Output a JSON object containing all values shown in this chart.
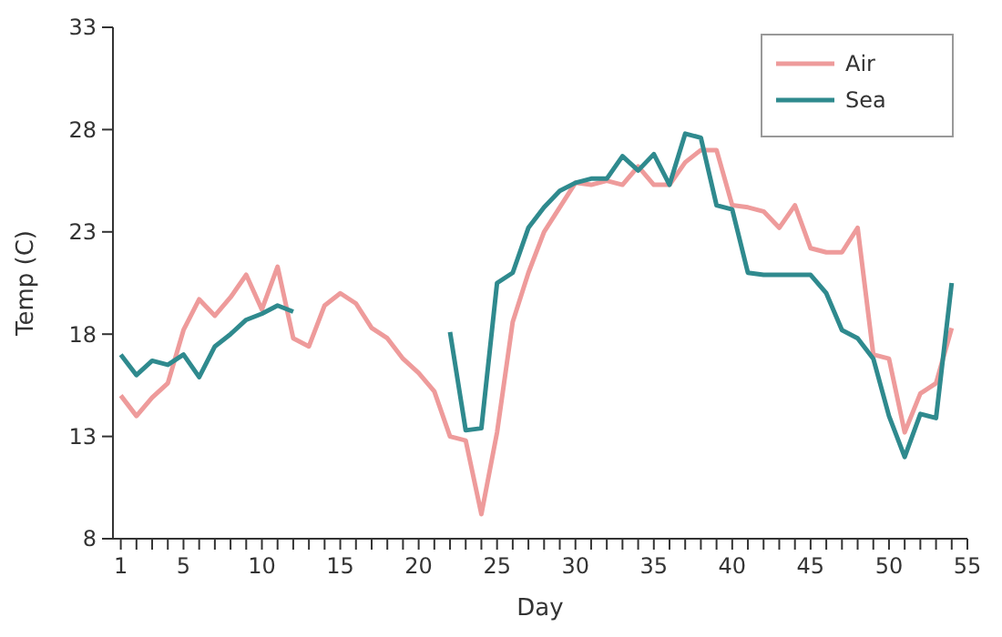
{
  "chart_data": {
    "type": "line",
    "xlabel": "Day",
    "ylabel": "Temp (C)",
    "x": [
      1,
      2,
      3,
      4,
      5,
      6,
      7,
      8,
      9,
      10,
      11,
      12,
      13,
      14,
      15,
      16,
      17,
      18,
      19,
      20,
      21,
      22,
      23,
      24,
      25,
      26,
      27,
      28,
      29,
      30,
      31,
      32,
      33,
      34,
      35,
      36,
      37,
      38,
      39,
      40,
      41,
      42,
      43,
      44,
      45,
      46,
      47,
      48,
      49,
      50,
      51,
      52,
      53,
      54
    ],
    "series": [
      {
        "name": "Air",
        "color": "#ee9b9b",
        "values": [
          15.0,
          14.0,
          14.9,
          15.6,
          18.2,
          19.7,
          18.9,
          19.8,
          20.9,
          19.2,
          21.3,
          17.8,
          17.4,
          19.4,
          20.0,
          19.5,
          18.3,
          17.8,
          16.8,
          16.1,
          15.2,
          13.0,
          12.8,
          9.2,
          13.2,
          18.6,
          21.0,
          23.0,
          24.2,
          25.4,
          25.3,
          25.5,
          25.3,
          26.2,
          25.3,
          25.3,
          26.4,
          27.0,
          27.0,
          24.3,
          24.2,
          24.0,
          23.2,
          24.3,
          22.2,
          22.0,
          22.0,
          23.2,
          17.0,
          16.8,
          13.2,
          15.1,
          15.6,
          18.3
        ]
      },
      {
        "name": "Sea",
        "color": "#2f8a8e",
        "values": [
          17.0,
          16.0,
          16.7,
          16.5,
          17.0,
          15.9,
          17.4,
          18.0,
          18.7,
          19.0,
          19.4,
          19.1,
          null,
          null,
          null,
          null,
          null,
          null,
          null,
          null,
          null,
          18.1,
          13.3,
          13.4,
          20.5,
          21.0,
          23.2,
          24.2,
          25.0,
          25.4,
          25.6,
          25.6,
          26.7,
          26.0,
          26.8,
          25.3,
          27.8,
          27.6,
          24.3,
          24.1,
          21.0,
          20.9,
          20.9,
          20.9,
          20.9,
          20.0,
          18.2,
          17.8,
          16.8,
          14.0,
          12.0,
          14.1,
          13.9,
          20.5
        ]
      }
    ],
    "xlim": [
      0.5,
      55
    ],
    "xticks": [
      1,
      {
        "value": 2,
        "label": null
      },
      {
        "value": 3,
        "label": null
      },
      {
        "value": 4,
        "label": null
      },
      5,
      {
        "value": 6,
        "label": null
      },
      {
        "value": 7,
        "label": null
      },
      {
        "value": 8,
        "label": null
      },
      {
        "value": 9,
        "label": null
      },
      10,
      {
        "value": 11,
        "label": null
      },
      {
        "value": 12,
        "label": null
      },
      {
        "value": 13,
        "label": null
      },
      {
        "value": 14,
        "label": null
      },
      15,
      {
        "value": 16,
        "label": null
      },
      {
        "value": 17,
        "label": null
      },
      {
        "value": 18,
        "label": null
      },
      {
        "value": 19,
        "label": null
      },
      20,
      {
        "value": 21,
        "label": null
      },
      {
        "value": 22,
        "label": null
      },
      {
        "value": 23,
        "label": null
      },
      {
        "value": 24,
        "label": null
      },
      25,
      {
        "value": 26,
        "label": null
      },
      {
        "value": 27,
        "label": null
      },
      {
        "value": 28,
        "label": null
      },
      {
        "value": 29,
        "label": null
      },
      30,
      {
        "value": 31,
        "label": null
      },
      {
        "value": 32,
        "label": null
      },
      {
        "value": 33,
        "label": null
      },
      {
        "value": 34,
        "label": null
      },
      35,
      {
        "value": 36,
        "label": null
      },
      {
        "value": 37,
        "label": null
      },
      {
        "value": 38,
        "label": null
      },
      {
        "value": 39,
        "label": null
      },
      40,
      {
        "value": 41,
        "label": null
      },
      {
        "value": 42,
        "label": null
      },
      {
        "value": 43,
        "label": null
      },
      {
        "value": 44,
        "label": null
      },
      45,
      {
        "value": 46,
        "label": null
      },
      {
        "value": 47,
        "label": null
      },
      {
        "value": 48,
        "label": null
      },
      {
        "value": 49,
        "label": null
      },
      50,
      {
        "value": 51,
        "label": null
      },
      {
        "value": 52,
        "label": null
      },
      {
        "value": 53,
        "label": null
      },
      {
        "value": 54,
        "label": null
      },
      55
    ],
    "ylim": [
      8,
      33
    ],
    "yticks": [
      8,
      13,
      18,
      23,
      28,
      33
    ],
    "grid": false,
    "legend": "top right",
    "marker": "none",
    "line_style": "solid"
  }
}
